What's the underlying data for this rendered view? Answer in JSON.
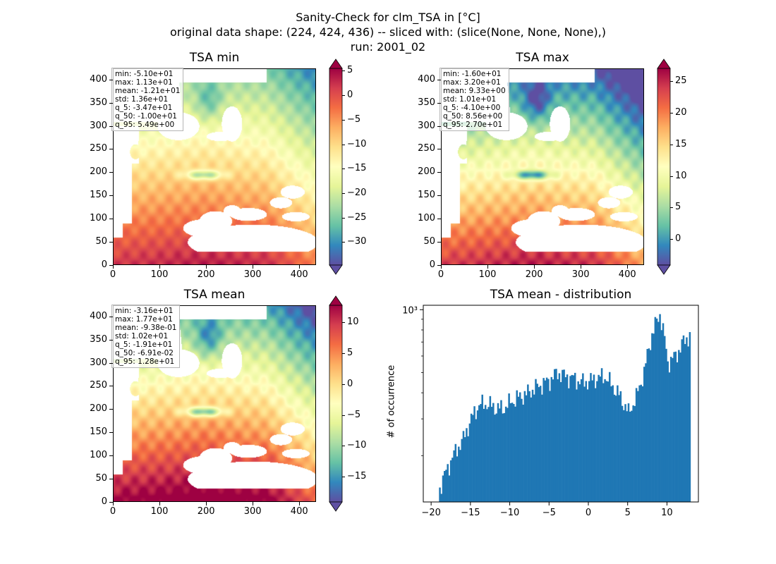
{
  "figure": {
    "title_line1": "Sanity-Check for clm_TSA in [°C]",
    "title_line2": "original data shape: (224, 424, 436) -- sliced with: (slice(None, None, None),)",
    "title_line3": "run: 2001_02"
  },
  "colormap": "Spectral_r",
  "colors": {
    "bar": "#1f77b4",
    "nan": "#ffffff",
    "axes": "#000000"
  },
  "maps": [
    {
      "title": "TSA min",
      "stats": [
        "min: -5.10e+01",
        "max: 1.13e+01",
        "mean: -1.21e+01",
        "std: 1.36e+01",
        "q_5: -3.47e+01",
        "q_50: -1.00e+01",
        "q_95: 5.49e+00"
      ],
      "vmin": -34.7,
      "vmax": 5.49,
      "cbar_ticks": [
        5,
        0,
        -5,
        -10,
        -15,
        -20,
        -25,
        -30
      ],
      "xticks": [
        0,
        100,
        200,
        300,
        400
      ],
      "yticks": [
        0,
        50,
        100,
        150,
        200,
        250,
        300,
        350,
        400
      ]
    },
    {
      "title": "TSA max",
      "stats": [
        "min: -1.60e+01",
        "max: 3.20e+01",
        "mean: 9.33e+00",
        "std: 1.01e+01",
        "q_5: -4.10e+00",
        "q_50: 8.56e+00",
        "q_95: 2.70e+01"
      ],
      "vmin": -4.1,
      "vmax": 27.0,
      "cbar_ticks": [
        25,
        20,
        15,
        10,
        5,
        0
      ],
      "xticks": [
        0,
        100,
        200,
        300,
        400
      ],
      "yticks": [
        0,
        50,
        100,
        150,
        200,
        250,
        300,
        350,
        400
      ]
    },
    {
      "title": "TSA mean",
      "stats": [
        "min: -3.16e+01",
        "max: 1.77e+01",
        "mean: -9.38e-01",
        "std: 1.02e+01",
        "q_5: -1.91e+01",
        "q_50: -6.91e-02",
        "q_95: 1.28e+01"
      ],
      "vmin": -19.1,
      "vmax": 12.8,
      "cbar_ticks": [
        10,
        5,
        0,
        -5,
        -10,
        -15
      ],
      "xticks": [
        0,
        100,
        200,
        300,
        400
      ],
      "yticks": [
        0,
        50,
        100,
        150,
        200,
        250,
        300,
        350,
        400
      ]
    }
  ],
  "chart_data": {
    "type": "bar",
    "title": "TSA mean - distribution",
    "ylabel": "# of occurrence",
    "xlabel": "",
    "yscale": "log",
    "ytick_label": "10³",
    "xticks": [
      -20,
      -15,
      -10,
      -5,
      0,
      5,
      10
    ],
    "xlim": [
      -21,
      14
    ],
    "ylim": [
      120,
      1050
    ],
    "x": [
      -19,
      -18,
      -17,
      -16,
      -15,
      -14,
      -13,
      -12,
      -11,
      -10,
      -9,
      -8,
      -7,
      -6,
      -5,
      -4,
      -3,
      -2,
      -1,
      0,
      1,
      2,
      3,
      4,
      5,
      6,
      7,
      8,
      9,
      10,
      11,
      12,
      12.8
    ],
    "values": [
      140,
      175,
      210,
      240,
      300,
      350,
      355,
      340,
      335,
      360,
      380,
      395,
      420,
      440,
      460,
      500,
      480,
      470,
      450,
      455,
      470,
      480,
      430,
      380,
      320,
      380,
      500,
      760,
      960,
      560,
      600,
      700,
      760
    ]
  }
}
